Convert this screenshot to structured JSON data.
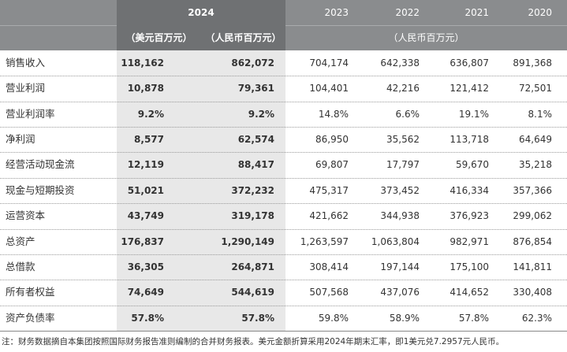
{
  "header": {
    "year_2024": "2024",
    "years_hist": [
      "2023",
      "2022",
      "2021",
      "2020"
    ],
    "unit_usd": "（美元百万元）",
    "unit_rmb": "（人民币百万元）",
    "unit_hist": "（人民币百万元）"
  },
  "rows": [
    {
      "label": "销售收入",
      "usd": "118,162",
      "rmb": "862,072",
      "y2023": "704,174",
      "y2022": "642,338",
      "y2021": "636,807",
      "y2020": "891,368"
    },
    {
      "label": "营业利润",
      "usd": "10,878",
      "rmb": "79,361",
      "y2023": "104,401",
      "y2022": "42,216",
      "y2021": "121,412",
      "y2020": "72,501"
    },
    {
      "label": "营业利润率",
      "usd": "9.2%",
      "rmb": "9.2%",
      "y2023": "14.8%",
      "y2022": "6.6%",
      "y2021": "19.1%",
      "y2020": "8.1%"
    },
    {
      "label": "净利润",
      "usd": "8,577",
      "rmb": "62,574",
      "y2023": "86,950",
      "y2022": "35,562",
      "y2021": "113,718",
      "y2020": "64,649"
    },
    {
      "label": "经营活动现金流",
      "usd": "12,119",
      "rmb": "88,417",
      "y2023": "69,807",
      "y2022": "17,797",
      "y2021": "59,670",
      "y2020": "35,218"
    },
    {
      "label": "现金与短期投资",
      "usd": "51,021",
      "rmb": "372,232",
      "y2023": "475,317",
      "y2022": "373,452",
      "y2021": "416,334",
      "y2020": "357,366"
    },
    {
      "label": "运营资本",
      "usd": "43,749",
      "rmb": "319,178",
      "y2023": "421,662",
      "y2022": "344,938",
      "y2021": "376,923",
      "y2020": "299,062"
    },
    {
      "label": "总资产",
      "usd": "176,837",
      "rmb": "1,290,149",
      "y2023": "1,263,597",
      "y2022": "1,063,804",
      "y2021": "982,971",
      "y2020": "876,854"
    },
    {
      "label": "总借款",
      "usd": "36,305",
      "rmb": "264,871",
      "y2023": "308,414",
      "y2022": "197,144",
      "y2021": "175,100",
      "y2020": "141,811"
    },
    {
      "label": "所有者权益",
      "usd": "74,649",
      "rmb": "544,619",
      "y2023": "507,568",
      "y2022": "437,076",
      "y2021": "414,652",
      "y2020": "330,408"
    },
    {
      "label": "资产负债率",
      "usd": "57.8%",
      "rmb": "57.8%",
      "y2023": "59.8%",
      "y2022": "58.9%",
      "y2021": "57.8%",
      "y2020": "62.3%"
    }
  ],
  "note": "注：财务数据摘自本集团按照国际财务报告准则编制的合并财务报表。美元金额折算采用2024年期末汇率，即1美元兑7.2957元人民币。",
  "colors": {
    "header": "#8a8c8e",
    "header_2024": "#6f7173",
    "band": "#e8e8e8"
  }
}
